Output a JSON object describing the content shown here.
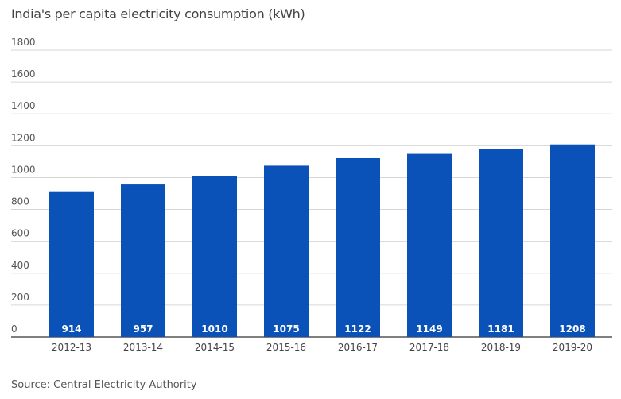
{
  "chart_data": {
    "type": "bar",
    "title": "India's per capita electricity consumption (kWh)",
    "categories": [
      "2012-13",
      "2013-14",
      "2014-15",
      "2015-16",
      "2016-17",
      "2017-18",
      "2018-19",
      "2019-20"
    ],
    "values": [
      914,
      957,
      1010,
      1075,
      1122,
      1149,
      1181,
      1208
    ],
    "data_labels": [
      "914",
      "957",
      "1010",
      "1075",
      "1122",
      "1149",
      "1181",
      "1208"
    ],
    "yticks": [
      0,
      200,
      400,
      600,
      800,
      1000,
      1200,
      1400,
      1600,
      1800
    ],
    "ytick_labels": [
      "0",
      "200",
      "400",
      "600",
      "800",
      "1000",
      "1200",
      "1400",
      "1600",
      "1800"
    ],
    "ylim": [
      0,
      1800
    ],
    "xlabel": "",
    "ylabel": "",
    "grid": true,
    "bar_color": "#0a52b8",
    "label_color": "#ffffff",
    "source": "Source: Central Electricity Authority"
  }
}
